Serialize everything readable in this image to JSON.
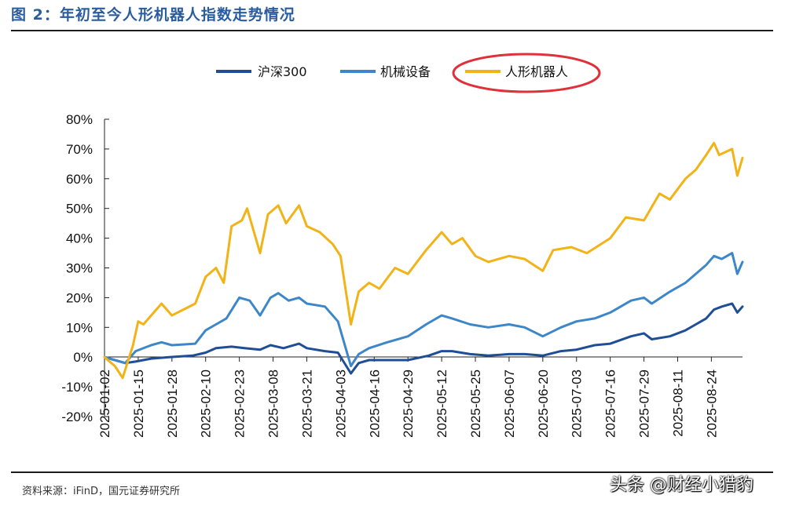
{
  "figure": {
    "title": "图 2：年初至今人形机器人指数走势情况",
    "source": "资料来源：iFinD，国元证券研究所",
    "watermark": "头条 @财经小猎豹"
  },
  "colors": {
    "title": "#2a5d9f",
    "hs300": "#1f4e96",
    "machinery": "#3d87c9",
    "robot": "#f2b318",
    "highlight": "#e0303a"
  },
  "chart_data": {
    "type": "line",
    "ylim": [
      -20,
      80
    ],
    "y_ticks": [
      "80%",
      "70%",
      "60%",
      "50%",
      "40%",
      "30%",
      "20%",
      "10%",
      "0%",
      "-10%",
      "-20%"
    ],
    "x_ticks": [
      "2025-01-02",
      "2025-01-15",
      "2025-01-28",
      "2025-02-10",
      "2025-02-23",
      "2025-03-08",
      "2025-03-21",
      "2025-04-03",
      "2025-04-16",
      "2025-04-29",
      "2025-05-12",
      "2025-05-25",
      "2025-06-07",
      "2025-06-20",
      "2025-07-03",
      "2025-07-16",
      "2025-07-29",
      "2025-08-11",
      "2025-08-24"
    ],
    "legend_position": "top-center",
    "highlighted_series": "人形机器人",
    "series": [
      {
        "name": "沪深300",
        "color": "#1f4e96",
        "points": [
          [
            "2025-01-02",
            0
          ],
          [
            "2025-01-06",
            -1
          ],
          [
            "2025-01-10",
            -2
          ],
          [
            "2025-01-14",
            -1.5
          ],
          [
            "2025-01-20",
            -0.5
          ],
          [
            "2025-01-27",
            0
          ],
          [
            "2025-02-05",
            0.5
          ],
          [
            "2025-02-10",
            1.5
          ],
          [
            "2025-02-14",
            3
          ],
          [
            "2025-02-20",
            3.5
          ],
          [
            "2025-02-25",
            3
          ],
          [
            "2025-03-03",
            2.5
          ],
          [
            "2025-03-07",
            4
          ],
          [
            "2025-03-12",
            3
          ],
          [
            "2025-03-18",
            4.5
          ],
          [
            "2025-03-21",
            3
          ],
          [
            "2025-03-28",
            2
          ],
          [
            "2025-04-02",
            1.5
          ],
          [
            "2025-04-07",
            -5.5
          ],
          [
            "2025-04-10",
            -2
          ],
          [
            "2025-04-14",
            -1
          ],
          [
            "2025-04-21",
            -1
          ],
          [
            "2025-04-29",
            -1
          ],
          [
            "2025-05-07",
            0.5
          ],
          [
            "2025-05-12",
            2
          ],
          [
            "2025-05-16",
            2
          ],
          [
            "2025-05-23",
            1
          ],
          [
            "2025-05-30",
            0.5
          ],
          [
            "2025-06-07",
            1
          ],
          [
            "2025-06-13",
            1
          ],
          [
            "2025-06-20",
            0.5
          ],
          [
            "2025-06-27",
            2
          ],
          [
            "2025-07-03",
            2.5
          ],
          [
            "2025-07-10",
            4
          ],
          [
            "2025-07-16",
            4.5
          ],
          [
            "2025-07-24",
            7
          ],
          [
            "2025-07-29",
            8
          ],
          [
            "2025-08-01",
            6
          ],
          [
            "2025-08-08",
            7
          ],
          [
            "2025-08-14",
            9
          ],
          [
            "2025-08-18",
            11
          ],
          [
            "2025-08-22",
            13
          ],
          [
            "2025-08-25",
            16
          ],
          [
            "2025-08-28",
            17
          ],
          [
            "2025-09-01",
            18
          ],
          [
            "2025-09-03",
            15
          ],
          [
            "2025-09-05",
            17
          ]
        ]
      },
      {
        "name": "机械设备",
        "color": "#3d87c9",
        "points": [
          [
            "2025-01-02",
            0
          ],
          [
            "2025-01-06",
            -1
          ],
          [
            "2025-01-10",
            -2
          ],
          [
            "2025-01-14",
            2
          ],
          [
            "2025-01-20",
            4
          ],
          [
            "2025-01-24",
            5
          ],
          [
            "2025-01-28",
            4
          ],
          [
            "2025-02-06",
            4.5
          ],
          [
            "2025-02-10",
            9
          ],
          [
            "2025-02-14",
            11
          ],
          [
            "2025-02-18",
            13
          ],
          [
            "2025-02-23",
            20
          ],
          [
            "2025-02-27",
            19
          ],
          [
            "2025-03-03",
            14
          ],
          [
            "2025-03-07",
            20
          ],
          [
            "2025-03-10",
            21.5
          ],
          [
            "2025-03-14",
            19
          ],
          [
            "2025-03-18",
            20
          ],
          [
            "2025-03-21",
            18
          ],
          [
            "2025-03-28",
            17
          ],
          [
            "2025-04-02",
            12
          ],
          [
            "2025-04-07",
            -3
          ],
          [
            "2025-04-10",
            1
          ],
          [
            "2025-04-14",
            3
          ],
          [
            "2025-04-21",
            5
          ],
          [
            "2025-04-29",
            7
          ],
          [
            "2025-05-06",
            11
          ],
          [
            "2025-05-12",
            14
          ],
          [
            "2025-05-16",
            13
          ],
          [
            "2025-05-23",
            11
          ],
          [
            "2025-05-30",
            10
          ],
          [
            "2025-06-07",
            11
          ],
          [
            "2025-06-13",
            10
          ],
          [
            "2025-06-20",
            7
          ],
          [
            "2025-06-27",
            10
          ],
          [
            "2025-07-03",
            12
          ],
          [
            "2025-07-10",
            13
          ],
          [
            "2025-07-16",
            15
          ],
          [
            "2025-07-24",
            19
          ],
          [
            "2025-07-29",
            20
          ],
          [
            "2025-08-01",
            18
          ],
          [
            "2025-08-08",
            22
          ],
          [
            "2025-08-14",
            25
          ],
          [
            "2025-08-18",
            28
          ],
          [
            "2025-08-22",
            31
          ],
          [
            "2025-08-25",
            34
          ],
          [
            "2025-08-28",
            33
          ],
          [
            "2025-09-01",
            35
          ],
          [
            "2025-09-03",
            28
          ],
          [
            "2025-09-05",
            32
          ]
        ]
      },
      {
        "name": "人形机器人",
        "color": "#f2b318",
        "points": [
          [
            "2025-01-02",
            0
          ],
          [
            "2025-01-06",
            -3
          ],
          [
            "2025-01-09",
            -7
          ],
          [
            "2025-01-13",
            4
          ],
          [
            "2025-01-15",
            12
          ],
          [
            "2025-01-17",
            11
          ],
          [
            "2025-01-20",
            14
          ],
          [
            "2025-01-24",
            18
          ],
          [
            "2025-01-28",
            14
          ],
          [
            "2025-02-06",
            18
          ],
          [
            "2025-02-10",
            27
          ],
          [
            "2025-02-14",
            30
          ],
          [
            "2025-02-17",
            25
          ],
          [
            "2025-02-20",
            44
          ],
          [
            "2025-02-24",
            46
          ],
          [
            "2025-02-26",
            50
          ],
          [
            "2025-03-03",
            35
          ],
          [
            "2025-03-06",
            48
          ],
          [
            "2025-03-10",
            51
          ],
          [
            "2025-03-13",
            45
          ],
          [
            "2025-03-18",
            51
          ],
          [
            "2025-03-21",
            44
          ],
          [
            "2025-03-26",
            42
          ],
          [
            "2025-03-31",
            38
          ],
          [
            "2025-04-03",
            34
          ],
          [
            "2025-04-07",
            11
          ],
          [
            "2025-04-10",
            22
          ],
          [
            "2025-04-14",
            25
          ],
          [
            "2025-04-18",
            23
          ],
          [
            "2025-04-24",
            30
          ],
          [
            "2025-04-29",
            28
          ],
          [
            "2025-05-06",
            36
          ],
          [
            "2025-05-12",
            42
          ],
          [
            "2025-05-16",
            38
          ],
          [
            "2025-05-20",
            40
          ],
          [
            "2025-05-25",
            34
          ],
          [
            "2025-05-30",
            32
          ],
          [
            "2025-06-07",
            34
          ],
          [
            "2025-06-13",
            33
          ],
          [
            "2025-06-20",
            29
          ],
          [
            "2025-06-24",
            36
          ],
          [
            "2025-07-01",
            37
          ],
          [
            "2025-07-07",
            35
          ],
          [
            "2025-07-16",
            40
          ],
          [
            "2025-07-22",
            47
          ],
          [
            "2025-07-29",
            46
          ],
          [
            "2025-08-04",
            55
          ],
          [
            "2025-08-08",
            53
          ],
          [
            "2025-08-14",
            60
          ],
          [
            "2025-08-18",
            63
          ],
          [
            "2025-08-22",
            68
          ],
          [
            "2025-08-25",
            72
          ],
          [
            "2025-08-27",
            68
          ],
          [
            "2025-09-01",
            70
          ],
          [
            "2025-09-03",
            61
          ],
          [
            "2025-09-05",
            67
          ]
        ]
      }
    ]
  }
}
